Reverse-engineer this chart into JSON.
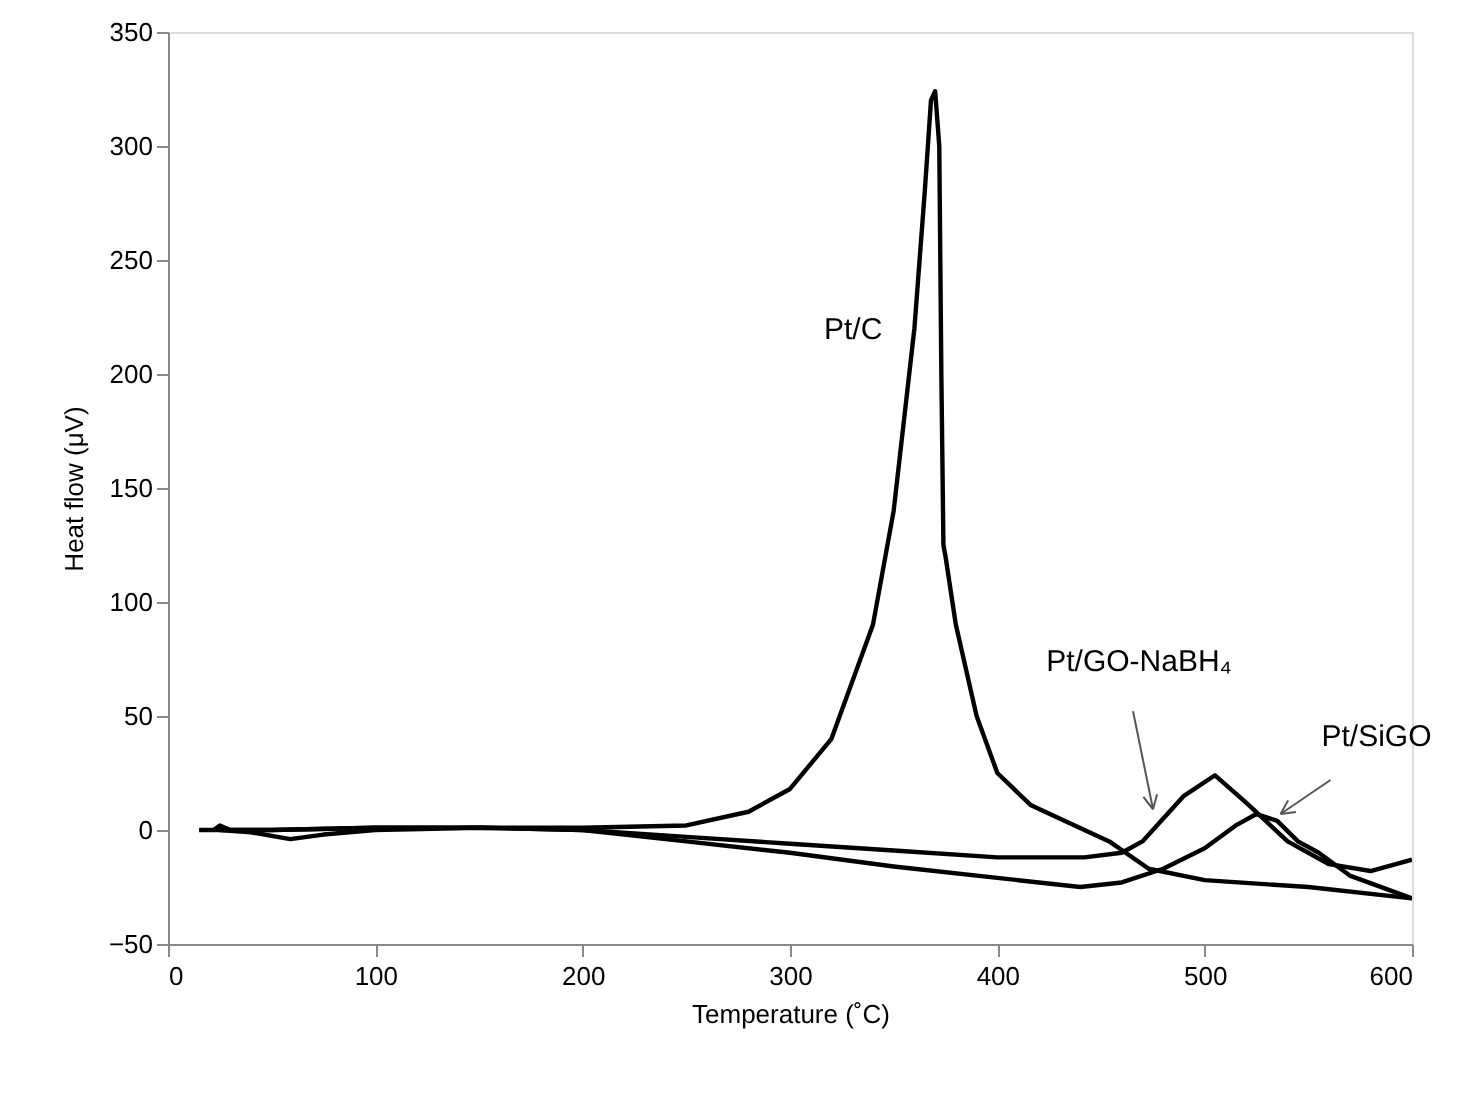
{
  "chart_data": {
    "type": "line",
    "xlabel": "Temperature (˚C)",
    "ylabel": "Heat flow (μV)",
    "xlim": [
      0,
      600
    ],
    "ylim": [
      -50,
      350
    ],
    "xticks": [
      0,
      100,
      200,
      300,
      400,
      500,
      600
    ],
    "yticks": [
      -50,
      0,
      50,
      100,
      150,
      200,
      250,
      300,
      350
    ],
    "grid": false,
    "legend": false,
    "marker": "none",
    "line_style": "solid",
    "series": [
      {
        "name": "Pt/C",
        "color": "#000000",
        "x": [
          15,
          50,
          100,
          150,
          200,
          250,
          280,
          300,
          320,
          340,
          350,
          360,
          365,
          368,
          370,
          372,
          373,
          374,
          375,
          380,
          390,
          400,
          416,
          430,
          454,
          473,
          500,
          550,
          600
        ],
        "values": [
          0,
          0,
          1,
          1,
          1,
          2,
          8,
          18,
          40,
          90,
          140,
          220,
          280,
          320,
          324,
          300,
          200,
          125,
          120,
          90,
          50,
          25,
          11,
          5,
          -5,
          -17,
          -22,
          -25,
          -30
        ]
      },
      {
        "name": "Pt/GO-NaBH₄",
        "color": "#000000",
        "x": [
          22,
          25,
          30,
          50,
          100,
          150,
          200,
          250,
          300,
          350,
          400,
          442,
          460,
          470,
          490,
          505,
          520,
          540,
          560,
          580,
          600
        ],
        "values": [
          0,
          2,
          0,
          0,
          1,
          1,
          0,
          -3,
          -6,
          -9,
          -12,
          -12,
          -10,
          -5,
          15,
          24,
          12,
          -5,
          -15,
          -18,
          -13
        ]
      },
      {
        "name": "Pt/SiGO",
        "color": "#000000",
        "x": [
          25,
          40,
          59,
          75,
          100,
          150,
          200,
          250,
          300,
          350,
          400,
          440,
          460,
          480,
          500,
          515,
          525,
          535,
          545,
          555,
          570,
          600
        ],
        "values": [
          0,
          -1,
          -4,
          -2,
          0,
          1,
          0,
          -5,
          -10,
          -16,
          -21,
          -25,
          -23,
          -17,
          -8,
          2,
          7,
          4,
          -5,
          -10,
          -20,
          -30
        ]
      }
    ]
  }
}
